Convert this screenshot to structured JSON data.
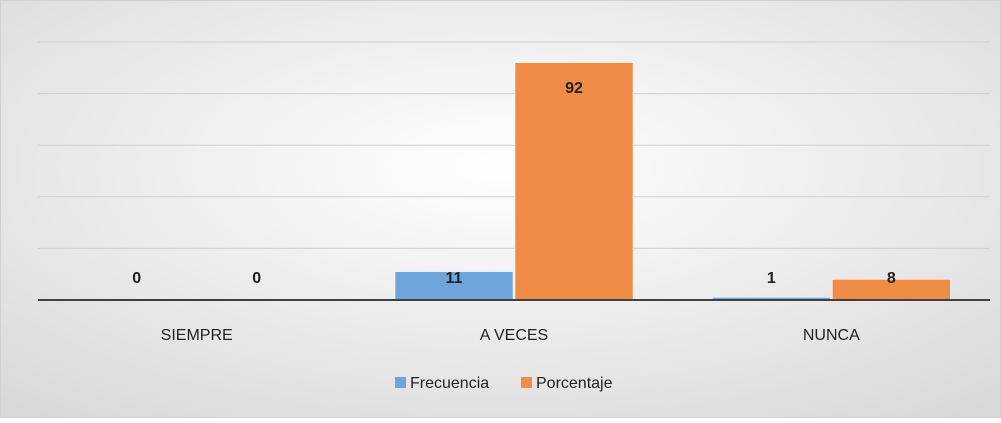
{
  "chart_data": {
    "type": "bar",
    "categories": [
      "SIEMPRE",
      "A VECES",
      "NUNCA"
    ],
    "series": [
      {
        "name": "Frecuencia",
        "color": "#6ea6dc",
        "values": [
          0,
          11,
          1
        ]
      },
      {
        "name": "Porcentaje",
        "color": "#f08c45",
        "values": [
          0,
          92,
          8
        ]
      }
    ],
    "ylim": [
      0,
      100
    ],
    "yticks": [
      0,
      20,
      40,
      60,
      80,
      100
    ],
    "grid": true,
    "legend": "bottom"
  }
}
